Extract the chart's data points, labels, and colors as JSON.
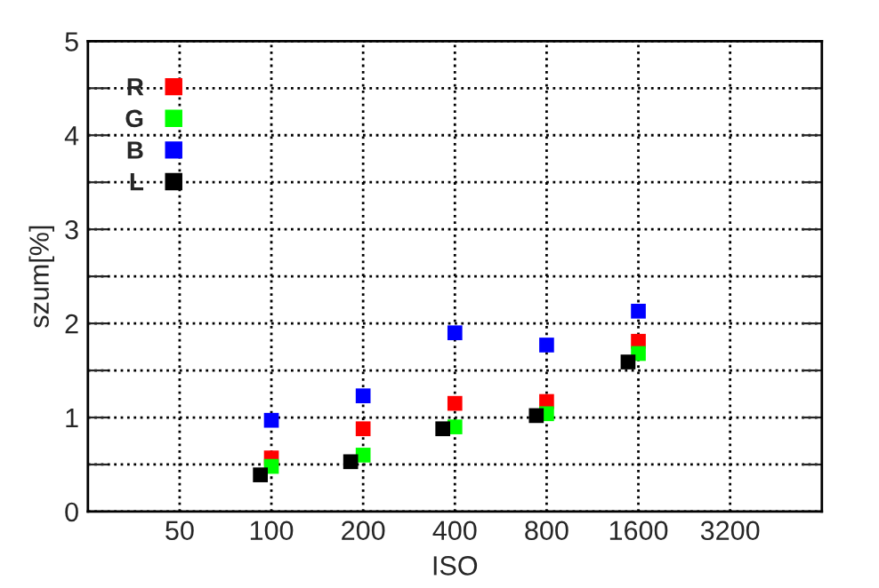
{
  "chart_data": {
    "type": "scatter",
    "xlabel": "ISO",
    "ylabel": "szum[%]",
    "log": "x",
    "marker": "square",
    "grid": true,
    "legend": "top left",
    "xlim": [
      25,
      6400
    ],
    "xticks": [
      50,
      100,
      200,
      400,
      800,
      1600,
      3200
    ],
    "ylim": [
      0,
      5
    ],
    "yticks": [
      0,
      {
        "value": 0.5,
        "label": null
      },
      1,
      {
        "value": 1.5,
        "label": null
      },
      2,
      {
        "value": 2.5,
        "label": null
      },
      3,
      {
        "value": 3.5,
        "label": null
      },
      4,
      {
        "value": 4.5,
        "label": null
      },
      5
    ],
    "series": [
      {
        "name": "R",
        "color": "#ff0000",
        "x": [
          100,
          200,
          400,
          800,
          1600
        ],
        "values": [
          0.57,
          0.88,
          1.15,
          1.17,
          1.81
        ]
      },
      {
        "name": "G",
        "color": "#00ff00",
        "x": [
          100,
          200,
          400,
          800,
          1600
        ],
        "values": [
          0.48,
          0.6,
          0.9,
          1.04,
          1.68
        ]
      },
      {
        "name": "B",
        "color": "#0000ff",
        "x": [
          100,
          200,
          400,
          800,
          1600
        ],
        "values": [
          0.97,
          1.23,
          1.9,
          1.77,
          2.13
        ]
      },
      {
        "name": "L",
        "color": "#000000",
        "x": [
          92,
          182,
          365,
          740,
          1480
        ],
        "values": [
          0.39,
          0.53,
          0.88,
          1.02,
          1.59
        ]
      }
    ]
  }
}
